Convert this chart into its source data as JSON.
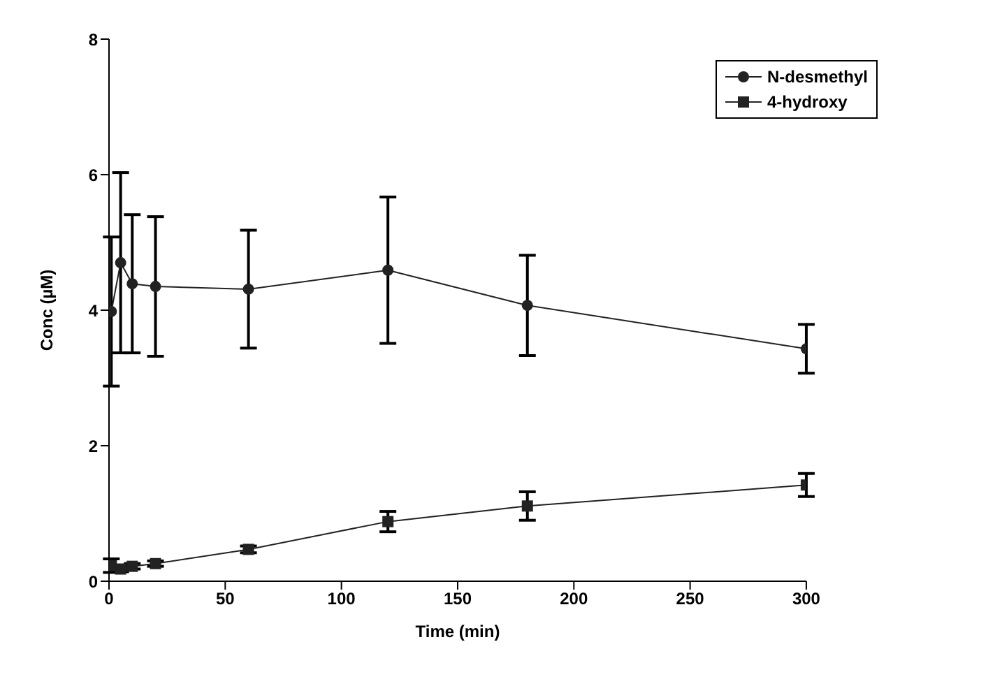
{
  "chart_data": {
    "type": "line",
    "xlabel": "Time (min)",
    "ylabel": "Conc (µM)",
    "xlim": [
      0,
      300
    ],
    "xticks": [
      0,
      50,
      100,
      150,
      200,
      250,
      300
    ],
    "ylim": [
      0,
      8
    ],
    "yticks": [
      0,
      2,
      4,
      6,
      8
    ],
    "grid": false,
    "legend": "top right",
    "series": [
      {
        "name": "N-desmethyl",
        "color": "#222222",
        "marker": "circle",
        "x": [
          1,
          5,
          10,
          20,
          60,
          120,
          180,
          300
        ],
        "values": [
          3.98,
          4.7,
          4.39,
          4.35,
          4.31,
          4.59,
          4.07,
          3.43
        ],
        "errors": [
          1.1,
          1.33,
          1.02,
          1.03,
          0.87,
          1.08,
          0.74,
          0.36
        ]
      },
      {
        "name": "4-hydroxy",
        "color": "#222222",
        "marker": "square",
        "x": [
          1,
          5,
          10,
          20,
          60,
          120,
          180,
          300
        ],
        "values": [
          0.23,
          0.18,
          0.22,
          0.26,
          0.47,
          0.88,
          1.11,
          1.42
        ],
        "errors": [
          0.1,
          0.04,
          0.04,
          0.04,
          0.05,
          0.15,
          0.21,
          0.17
        ]
      }
    ]
  }
}
